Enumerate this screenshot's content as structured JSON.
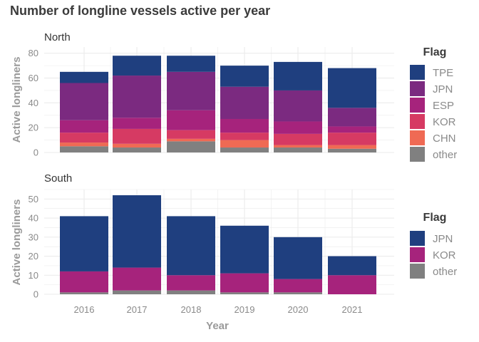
{
  "title": "Number of longline vessels active per year",
  "xlabel": "Year",
  "ylabel": "Active longliners",
  "legend_title": "Flag",
  "colors": {
    "TPE": "#1f3f7f",
    "JPN_north": "#7b2a80",
    "JPN_south": "#1f3f7f",
    "ESP": "#a6237c",
    "KOR_north": "#d63a63",
    "KOR_south": "#a6237c",
    "CHN": "#ef6a54",
    "other": "#808080",
    "grid": "#ebebeb"
  },
  "chart_data": [
    {
      "type": "bar",
      "stacked": true,
      "panel": "North",
      "categories": [
        "2016",
        "2017",
        "2018",
        "2019",
        "2020",
        "2021"
      ],
      "ylim": [
        0,
        85
      ],
      "yticks": [
        0,
        20,
        40,
        60,
        80
      ],
      "grid": true,
      "legend_position": "right",
      "series": [
        {
          "name": "other",
          "values": [
            5,
            4,
            9,
            4,
            4,
            3
          ]
        },
        {
          "name": "CHN",
          "values": [
            3,
            3,
            2,
            6,
            2,
            3
          ]
        },
        {
          "name": "KOR",
          "values": [
            8,
            12,
            7,
            6,
            9,
            10
          ]
        },
        {
          "name": "ESP",
          "values": [
            10,
            9,
            16,
            11,
            10,
            5
          ]
        },
        {
          "name": "JPN",
          "values": [
            30,
            34,
            31,
            26,
            25,
            15
          ]
        },
        {
          "name": "TPE",
          "values": [
            9,
            16,
            13,
            17,
            23,
            32
          ]
        }
      ]
    },
    {
      "type": "bar",
      "stacked": true,
      "panel": "South",
      "categories": [
        "2016",
        "2017",
        "2018",
        "2019",
        "2020",
        "2021"
      ],
      "ylim": [
        0,
        55
      ],
      "yticks": [
        0,
        10,
        20,
        30,
        40,
        50
      ],
      "grid": true,
      "legend_position": "right",
      "series": [
        {
          "name": "other",
          "values": [
            1,
            2,
            2,
            1,
            1,
            0
          ]
        },
        {
          "name": "KOR",
          "values": [
            11,
            12,
            8,
            10,
            7,
            10
          ]
        },
        {
          "name": "JPN",
          "values": [
            29,
            38,
            31,
            25,
            22,
            10
          ]
        }
      ]
    }
  ]
}
